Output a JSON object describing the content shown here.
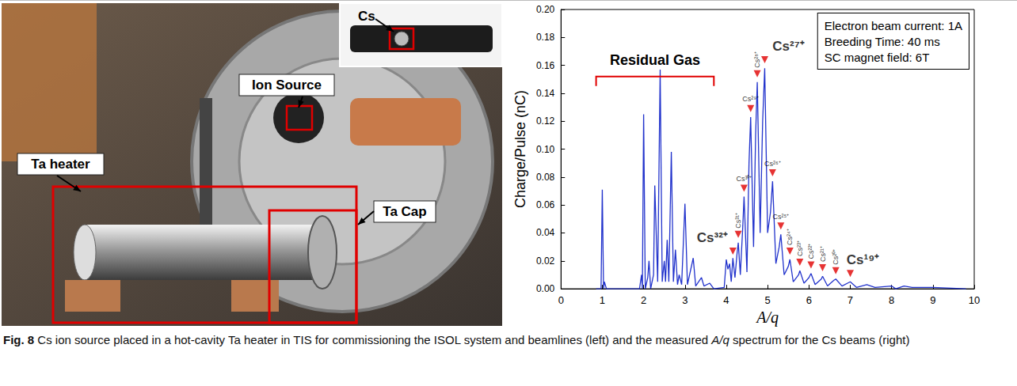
{
  "figure": {
    "photo": {
      "inset_label": "Cs",
      "labels": [
        "Ion Source",
        "Ta heater",
        "Ta Cap"
      ]
    },
    "caption": [
      {
        "text": "Fig. 8",
        "bold": true
      },
      {
        "text": " Cs ion source placed in a hot-cavity Ta heater in TIS for commissioning the ISOL system and beamlines (left) and the measured "
      },
      {
        "text": "A/q",
        "italic": true
      },
      {
        "text": " spectrum for the Cs beams (right)"
      }
    ]
  },
  "chart_data": {
    "type": "line",
    "x_label": "A/q",
    "y_label": "Charge/Pulse (nC)",
    "color": "#2233cc",
    "x": [
      0.85,
      0.97,
      1.0,
      1.03,
      1.05,
      1.1,
      1.9,
      1.95,
      1.97,
      2.0,
      2.04,
      2.1,
      2.13,
      2.17,
      2.24,
      2.27,
      2.31,
      2.34,
      2.4,
      2.45,
      2.5,
      2.53,
      2.57,
      2.61,
      2.67,
      2.72,
      2.77,
      2.82,
      2.86,
      2.92,
      3.0,
      3.06,
      3.2,
      3.26,
      3.4,
      3.46,
      3.6,
      3.7,
      3.95,
      4.0,
      4.04,
      4.08,
      4.12,
      4.16,
      4.21,
      4.26,
      4.29,
      4.34,
      4.4,
      4.43,
      4.5,
      4.55,
      4.59,
      4.66,
      4.71,
      4.75,
      4.82,
      4.88,
      4.93,
      5.0,
      5.07,
      5.12,
      5.2,
      5.28,
      5.32,
      5.4,
      5.5,
      5.54,
      5.62,
      5.75,
      5.78,
      5.88,
      6.0,
      6.05,
      6.15,
      6.3,
      6.33,
      6.45,
      6.6,
      6.65,
      6.8,
      7.0,
      7.15,
      7.4,
      7.6,
      8.0,
      8.1,
      8.3,
      8.5,
      9.0,
      9.8
    ],
    "values": [
      0,
      0,
      0.071,
      0,
      0.005,
      0,
      0,
      0.01,
      0,
      0.125,
      0,
      0.008,
      0.02,
      0,
      0.01,
      0.074,
      0.035,
      0.005,
      0.157,
      0.005,
      0.02,
      0.005,
      0.035,
      0.005,
      0.098,
      0.005,
      0.028,
      0.003,
      0.01,
      0.003,
      0.061,
      0.003,
      0.022,
      0.002,
      0.008,
      0.002,
      0.004,
      0,
      0.001,
      0.021,
      0.014,
      0.018,
      0.005,
      0.022,
      0.008,
      0.025,
      0.033,
      0.01,
      0.045,
      0.066,
      0.012,
      0.09,
      0.123,
      0.03,
      0.11,
      0.148,
      0.04,
      0.12,
      0.158,
      0.04,
      0.055,
      0.077,
      0.018,
      0.03,
      0.039,
      0.01,
      0.016,
      0.021,
      0.005,
      0.01,
      0.013,
      0.004,
      0.008,
      0.011,
      0.003,
      0.007,
      0.009,
      0.002,
      0.006,
      0.007,
      0.002,
      0.005,
      0.001,
      0.003,
      0.001,
      0.002,
      0,
      0.002,
      0.001,
      0.001,
      0
    ],
    "xlim": [
      0,
      10
    ],
    "xticks": [
      0,
      1,
      2,
      3,
      4,
      5,
      6,
      7,
      8,
      9,
      10
    ],
    "ylim": [
      0,
      0.2
    ],
    "yticks": [
      {
        "value": 0,
        "label": "0.00"
      },
      {
        "value": 0.02,
        "label": "0.02"
      },
      {
        "value": 0.04,
        "label": "0.04"
      },
      {
        "value": 0.06,
        "label": "0.06"
      },
      {
        "value": 0.08,
        "label": "0.08"
      },
      {
        "value": 0.1,
        "label": "0.10"
      },
      {
        "value": 0.12,
        "label": "0.12"
      },
      {
        "value": 0.14,
        "label": "0.14"
      },
      {
        "value": 0.16,
        "label": "0.16"
      },
      {
        "value": 0.18,
        "label": "0.18"
      },
      {
        "value": 0.2,
        "label": "0.20"
      }
    ],
    "grid": false,
    "marker_color": "#e00000",
    "markers": [
      {
        "x": 4.16,
        "y": 0.027,
        "label": "Cs³²⁺"
      },
      {
        "x": 4.29,
        "y": 0.039,
        "label": "Cs³¹⁺"
      },
      {
        "x": 4.43,
        "y": 0.072,
        "label": "Cs³⁰⁺"
      },
      {
        "x": 4.59,
        "y": 0.129,
        "label": "Cs²⁹⁺"
      },
      {
        "x": 4.75,
        "y": 0.154,
        "label": "Cs²⁸⁺"
      },
      {
        "x": 4.93,
        "y": 0.164,
        "label": "Cs²⁷⁺"
      },
      {
        "x": 5.12,
        "y": 0.083,
        "label": "Cs²⁶⁺"
      },
      {
        "x": 5.32,
        "y": 0.045,
        "label": "Cs²⁵⁺"
      },
      {
        "x": 5.54,
        "y": 0.027,
        "label": "Cs²⁴⁺"
      },
      {
        "x": 5.78,
        "y": 0.019,
        "label": "Cs²³⁺"
      },
      {
        "x": 6.05,
        "y": 0.017,
        "label": "Cs²²⁺"
      },
      {
        "x": 6.33,
        "y": 0.015,
        "label": "Cs²¹⁺"
      },
      {
        "x": 6.65,
        "y": 0.013,
        "label": "Cs²⁰⁺"
      },
      {
        "x": 7.0,
        "y": 0.011,
        "label": "Cs¹⁹⁺"
      }
    ],
    "annotations": [
      "Cs²⁷⁺",
      "Cs³²⁺",
      "Cs¹⁹⁺"
    ],
    "bracket": {
      "text": "Residual Gas",
      "from": 0.85,
      "to": 3.7,
      "y": 0.152,
      "color": "#e00000"
    },
    "note": [
      "Electron beam current: 1A",
      "Breeding Time: 40 ms",
      "SC magnet field: 6T"
    ]
  }
}
